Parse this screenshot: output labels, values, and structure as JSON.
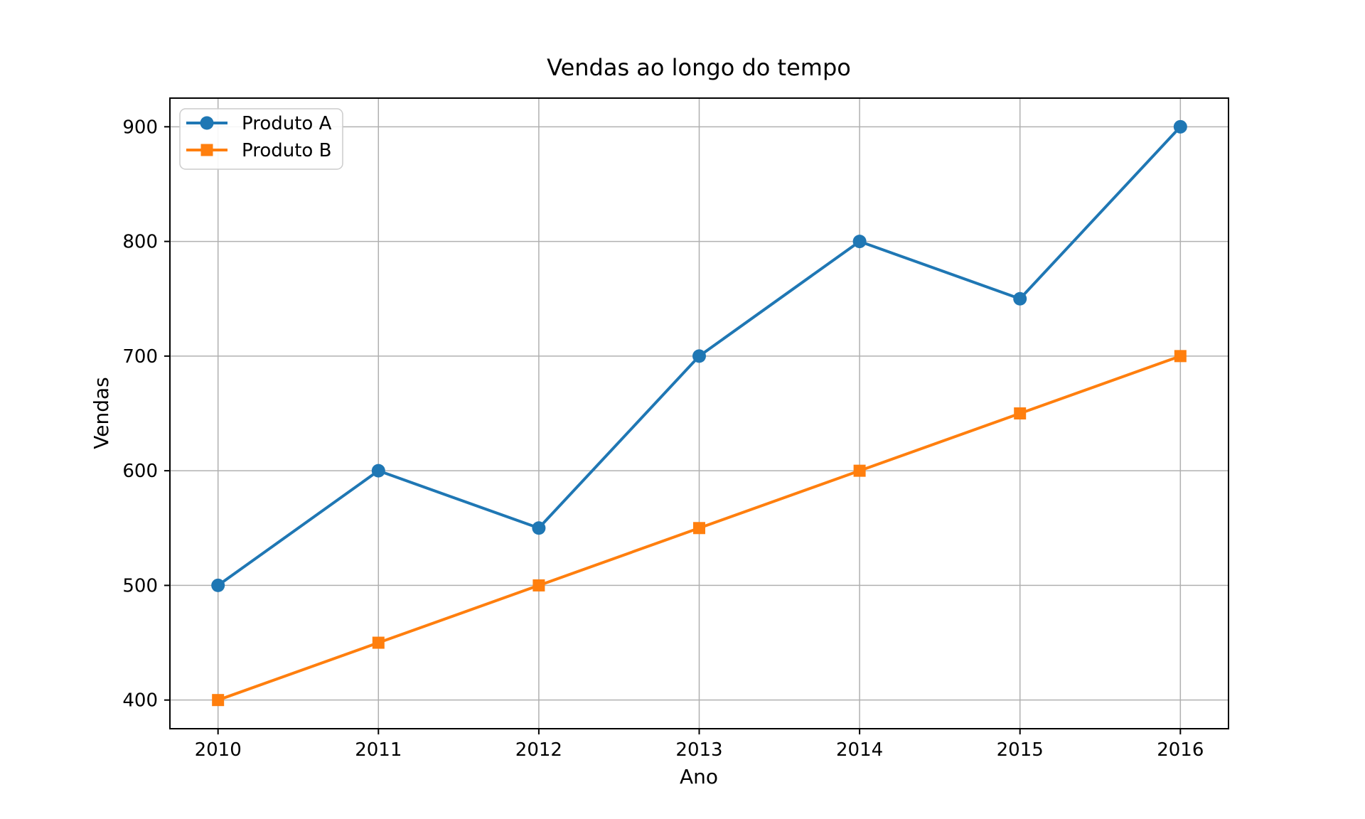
{
  "figure": {
    "background": "#ffffff"
  },
  "chart_data": {
    "type": "line",
    "title": "Vendas ao longo do tempo",
    "xlabel": "Ano",
    "ylabel": "Vendas",
    "x": [
      2010,
      2011,
      2012,
      2013,
      2014,
      2015,
      2016
    ],
    "xtick_labels": [
      "2010",
      "2011",
      "2012",
      "2013",
      "2014",
      "2015",
      "2016"
    ],
    "yticks": [
      400,
      500,
      600,
      700,
      800,
      900
    ],
    "xlim": [
      2009.7,
      2016.3
    ],
    "ylim": [
      375,
      925
    ],
    "grid": true,
    "series": [
      {
        "name": "Produto A",
        "values": [
          500,
          600,
          550,
          700,
          800,
          750,
          900
        ],
        "color": "#1f77b4",
        "marker": "circle"
      },
      {
        "name": "Produto B",
        "values": [
          400,
          450,
          500,
          550,
          600,
          650,
          700
        ],
        "color": "#ff7f0e",
        "marker": "square"
      }
    ],
    "legend": {
      "position": "upper left",
      "entries": [
        "Produto A",
        "Produto B"
      ]
    },
    "colors": {
      "grid": "#b0b0b0",
      "axis": "#000000",
      "background": "#ffffff",
      "legend_border": "#cccccc"
    }
  }
}
